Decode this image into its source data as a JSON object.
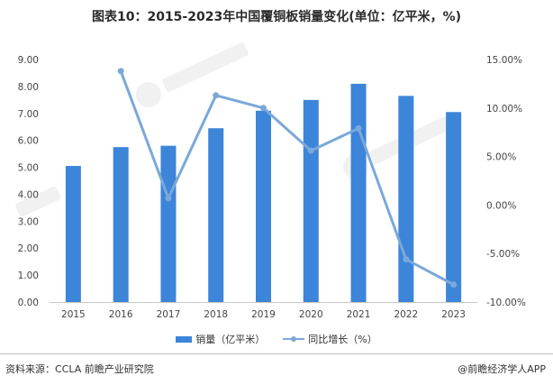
{
  "title": "图表10：2015-2023年中国覆铜板销量变化(单位：亿平米，%)",
  "footer": {
    "source": "资料来源：CCLA 前瞻产业研究院",
    "credit": "@前瞻经济学人APP"
  },
  "colors": {
    "bar": "#3c85d9",
    "line": "#7aa8da"
  },
  "chart_data": {
    "type": "bar",
    "categories": [
      "2015",
      "2016",
      "2017",
      "2018",
      "2019",
      "2020",
      "2021",
      "2022",
      "2023"
    ],
    "series": [
      {
        "name": "销量（亿平米）",
        "type": "bar",
        "axis": "left",
        "values": [
          5.05,
          5.75,
          5.8,
          6.45,
          7.1,
          7.5,
          8.1,
          7.65,
          7.05
        ]
      },
      {
        "name": "同比增长（%）",
        "type": "line",
        "axis": "right",
        "values": [
          null,
          13.8,
          0.7,
          11.3,
          10.0,
          5.6,
          7.9,
          -5.6,
          -8.2
        ]
      }
    ],
    "y_left": {
      "min": 0,
      "max": 9,
      "step": 1,
      "ticks": [
        "0.00",
        "1.00",
        "2.00",
        "3.00",
        "4.00",
        "5.00",
        "6.00",
        "7.00",
        "8.00",
        "9.00"
      ]
    },
    "y_right": {
      "min": -10,
      "max": 15,
      "step": 5,
      "ticks": [
        "-10.00%",
        "-5.00%",
        "0.00%",
        "5.00%",
        "10.00%",
        "15.00%"
      ]
    },
    "grid": false,
    "legend": "bottom"
  }
}
